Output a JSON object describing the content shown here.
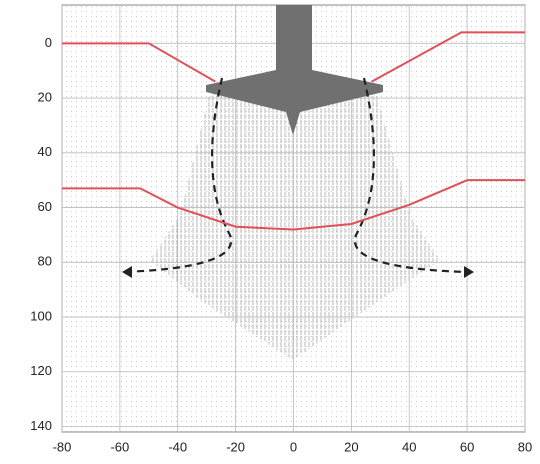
{
  "chart_data": {
    "type": "line",
    "xlim": [
      -80,
      80
    ],
    "xticks": [
      -80,
      -60,
      -40,
      -20,
      0,
      20,
      40,
      60,
      80
    ],
    "ylim": [
      -14,
      142
    ],
    "yticks": [
      0,
      20,
      40,
      60,
      80,
      100,
      120,
      140
    ],
    "y_inverted": true,
    "grid": true,
    "series": [
      {
        "color": "#e0505a",
        "x": [
          -80,
          -50,
          -27
        ],
        "values": [
          0,
          0,
          14
        ]
      },
      {
        "color": "#e0505a",
        "x": [
          27,
          58,
          80
        ],
        "values": [
          14,
          -4,
          -4
        ]
      },
      {
        "color": "#e0505a",
        "x": [
          -80,
          -53,
          -40,
          -20,
          0,
          20,
          40,
          60,
          80
        ],
        "values": [
          53,
          53,
          60,
          67,
          68,
          66,
          59,
          50,
          50
        ]
      }
    ]
  }
}
